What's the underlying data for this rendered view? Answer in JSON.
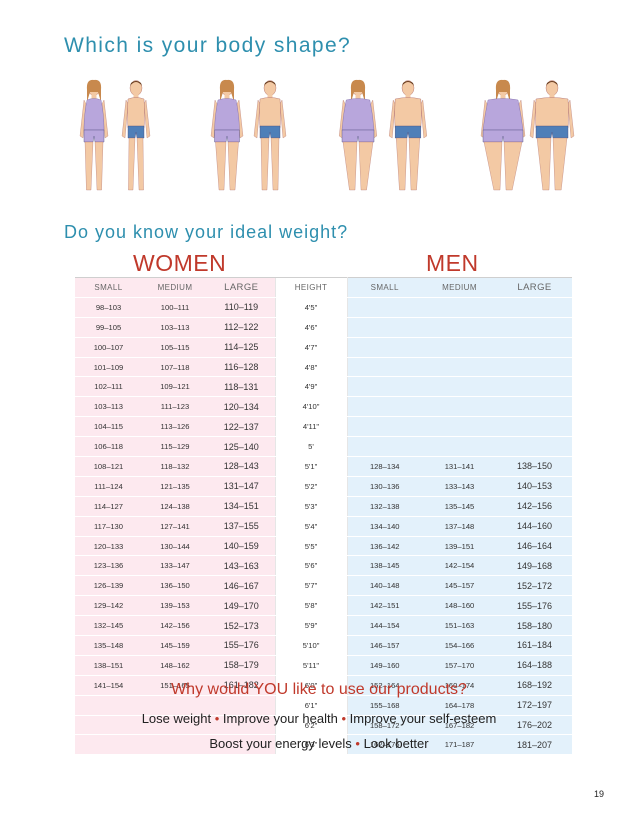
{
  "title_body_shape": "Which is your body shape?",
  "title_ideal_weight": "Do you know your ideal weight?",
  "figures": [
    {
      "name": "woman-small-figure",
      "size": "small",
      "gender": "female"
    },
    {
      "name": "man-small-figure",
      "size": "small",
      "gender": "male"
    },
    {
      "name": "woman-medium-figure",
      "size": "medium",
      "gender": "female"
    },
    {
      "name": "man-medium-figure",
      "size": "medium",
      "gender": "male"
    },
    {
      "name": "woman-large-figure",
      "size": "large",
      "gender": "female"
    },
    {
      "name": "man-large-figure",
      "size": "large",
      "gender": "male"
    },
    {
      "name": "woman-xlarge-figure",
      "size": "xlarge",
      "gender": "female"
    },
    {
      "name": "man-xlarge-figure",
      "size": "xlarge",
      "gender": "male"
    }
  ],
  "colors": {
    "accent_blue": "#2e8fae",
    "accent_red": "#c0392b",
    "women_bg": "#fde9ef",
    "men_bg": "#e3f1fb",
    "skin": "#f3c9a4",
    "top_purple": "#b8a6dc",
    "shorts_blue": "#4f7fb8"
  },
  "table": {
    "women_header": "WOMEN",
    "men_header": "MEN",
    "columns": [
      "SMALL",
      "MEDIUM",
      "LARGE",
      "HEIGHT",
      "SMALL",
      "MEDIUM",
      "LARGE"
    ],
    "rows": [
      [
        "98–103",
        "100–111",
        "110–119",
        "4'5\"",
        "",
        "",
        ""
      ],
      [
        "99–105",
        "103–113",
        "112–122",
        "4'6\"",
        "",
        "",
        ""
      ],
      [
        "100–107",
        "105–115",
        "114–125",
        "4'7\"",
        "",
        "",
        ""
      ],
      [
        "101–109",
        "107–118",
        "116–128",
        "4'8\"",
        "",
        "",
        ""
      ],
      [
        "102–111",
        "109–121",
        "118–131",
        "4'9\"",
        "",
        "",
        ""
      ],
      [
        "103–113",
        "111–123",
        "120–134",
        "4'10\"",
        "",
        "",
        ""
      ],
      [
        "104–115",
        "113–126",
        "122–137",
        "4'11\"",
        "",
        "",
        ""
      ],
      [
        "106–118",
        "115–129",
        "125–140",
        "5'",
        "",
        "",
        ""
      ],
      [
        "108–121",
        "118–132",
        "128–143",
        "5'1\"",
        "128–134",
        "131–141",
        "138–150"
      ],
      [
        "111–124",
        "121–135",
        "131–147",
        "5'2\"",
        "130–136",
        "133–143",
        "140–153"
      ],
      [
        "114–127",
        "124–138",
        "134–151",
        "5'3\"",
        "132–138",
        "135–145",
        "142–156"
      ],
      [
        "117–130",
        "127–141",
        "137–155",
        "5'4\"",
        "134–140",
        "137–148",
        "144–160"
      ],
      [
        "120–133",
        "130–144",
        "140–159",
        "5'5\"",
        "136–142",
        "139–151",
        "146–164"
      ],
      [
        "123–136",
        "133–147",
        "143–163",
        "5'6\"",
        "138–145",
        "142–154",
        "149–168"
      ],
      [
        "126–139",
        "136–150",
        "146–167",
        "5'7\"",
        "140–148",
        "145–157",
        "152–172"
      ],
      [
        "129–142",
        "139–153",
        "149–170",
        "5'8\"",
        "142–151",
        "148–160",
        "155–176"
      ],
      [
        "132–145",
        "142–156",
        "152–173",
        "5'9\"",
        "144–154",
        "151–163",
        "158–180"
      ],
      [
        "135–148",
        "145–159",
        "155–176",
        "5'10\"",
        "146–157",
        "154–166",
        "161–184"
      ],
      [
        "138–151",
        "148–162",
        "158–179",
        "5'11\"",
        "149–160",
        "157–170",
        "164–188"
      ],
      [
        "141–154",
        "151–165",
        "161–182",
        "6'0\"",
        "152–164",
        "160–174",
        "168–192"
      ],
      [
        "",
        "",
        "",
        "6'1\"",
        "155–168",
        "164–178",
        "172–197"
      ],
      [
        "",
        "",
        "",
        "6'2\"",
        "158–172",
        "167–182",
        "176–202"
      ],
      [
        "",
        "",
        "",
        "6'3\"",
        "162–176",
        "171–187",
        "181–207"
      ]
    ]
  },
  "question_products": "Why would YOU like to use our products?",
  "benefits_line1": [
    "Lose weight",
    "Improve your health",
    "Improve your self-esteem"
  ],
  "benefits_line2": [
    "Boost your energy levels",
    "Look better"
  ],
  "bullet": "•",
  "page_number": "19"
}
